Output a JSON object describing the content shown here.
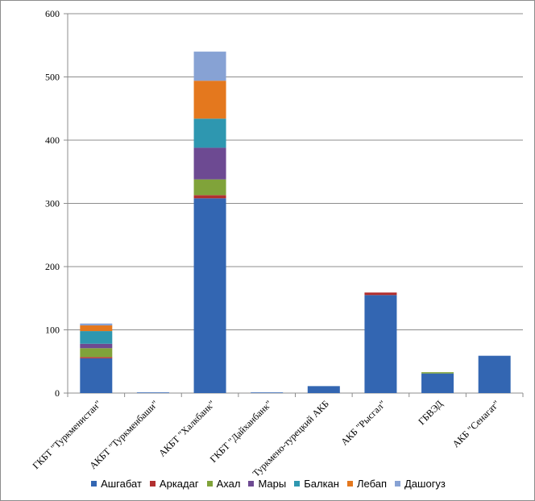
{
  "chart_data": {
    "type": "bar",
    "stacked": true,
    "title": "",
    "xlabel": "",
    "ylabel": "",
    "ylim": [
      0,
      600
    ],
    "y_ticks": [
      0,
      100,
      200,
      300,
      400,
      500,
      600
    ],
    "grid": true,
    "legend_position": "bottom",
    "categories": [
      "ГКБТ \"Туркменистан\"",
      "АКБТ \"Туркменбаши\"",
      "АКБТ \"Халкбанк\"",
      "ГКБТ \"Дайханбанк\"",
      "Туркмено-турецкий АКБ",
      "АКБ \"Рысгал\"",
      "ГБВЭД",
      "АКБ \"Сенагат\""
    ],
    "series": [
      {
        "name": "Ашгабат",
        "color": "#3366b2",
        "values": [
          55,
          1,
          308,
          1,
          11,
          155,
          31,
          59
        ]
      },
      {
        "name": "Аркадаг",
        "color": "#b23030",
        "values": [
          2,
          0,
          5,
          0,
          0,
          4,
          0,
          0
        ]
      },
      {
        "name": "Ахал",
        "color": "#80a33a",
        "values": [
          14,
          0,
          25,
          0,
          0,
          0,
          2,
          0
        ]
      },
      {
        "name": "Мары",
        "color": "#6d4a92",
        "values": [
          7,
          0,
          50,
          0,
          0,
          0,
          0,
          0
        ]
      },
      {
        "name": "Балкан",
        "color": "#2e97b0",
        "values": [
          20,
          0,
          46,
          0,
          0,
          0,
          0,
          0
        ]
      },
      {
        "name": "Лебап",
        "color": "#e4781e",
        "values": [
          9,
          0,
          60,
          0,
          0,
          0,
          0,
          0
        ]
      },
      {
        "name": "Дашогуз",
        "color": "#87a2d4",
        "values": [
          3,
          0,
          46,
          0,
          0,
          0,
          0,
          0
        ]
      }
    ]
  }
}
